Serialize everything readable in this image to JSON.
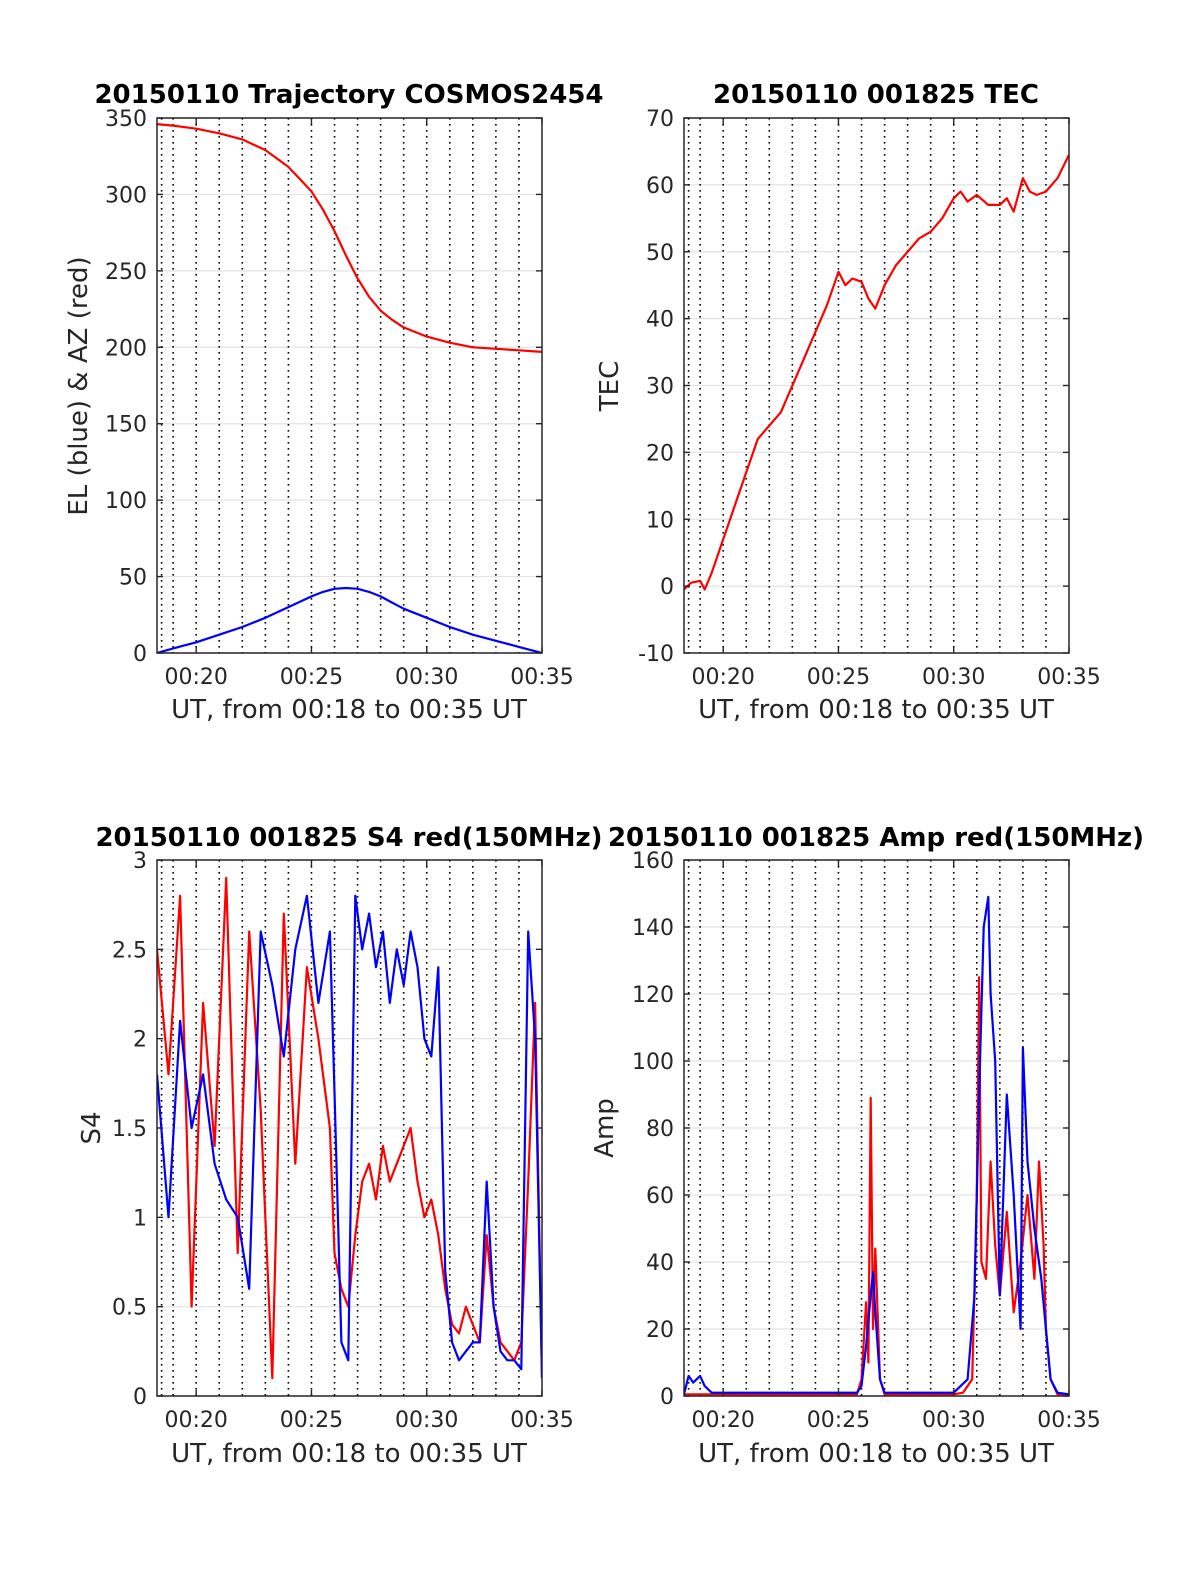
{
  "chart_data": [
    {
      "id": "traj",
      "type": "line",
      "title": "20150110 Trajectory COSMOS2454",
      "xlabel": "UT, from 00:18 to 00:35 UT",
      "ylabel": "EL (blue) & AZ (red)",
      "xlim": [
        18.3,
        35.0
      ],
      "ylim": [
        0,
        350
      ],
      "xticks": [
        20,
        25,
        30,
        35
      ],
      "xtick_labels": [
        "00:20",
        "00:25",
        "00:30",
        "00:35"
      ],
      "yticks": [
        0,
        50,
        100,
        150,
        200,
        250,
        300,
        350
      ],
      "ytick_labels": [
        "0",
        "50",
        "100",
        "150",
        "200",
        "250",
        "300",
        "350"
      ],
      "minor_xgrid": [
        18.5,
        19,
        20,
        21,
        22,
        23,
        24,
        25,
        26,
        27,
        28,
        29,
        30,
        31,
        32,
        33,
        34
      ],
      "grid": true,
      "colors": {
        "az": "#ff0000",
        "el": "#0000ff"
      },
      "series": [
        {
          "key": "az",
          "color": "#ff0000",
          "x": [
            18.3,
            19,
            20,
            21,
            22,
            23,
            24,
            25,
            25.5,
            26,
            26.5,
            27,
            27.5,
            28,
            28.5,
            29,
            30,
            31,
            32,
            33,
            34,
            35
          ],
          "y": [
            346,
            345,
            343,
            340,
            336,
            329,
            318,
            302,
            290,
            276,
            260,
            245,
            233,
            224,
            218,
            213,
            207,
            203,
            200,
            199,
            198,
            197
          ]
        },
        {
          "key": "el",
          "color": "#0000ff",
          "x": [
            18.3,
            19,
            20,
            21,
            22,
            23,
            24,
            25,
            25.5,
            26,
            26.5,
            27,
            27.5,
            28,
            28.5,
            29,
            30,
            31,
            32,
            33,
            34,
            35
          ],
          "y": [
            0,
            3,
            7,
            12,
            17,
            23,
            30,
            37,
            40,
            42,
            42.5,
            42,
            40,
            37,
            33,
            29,
            23,
            17,
            12,
            8,
            4,
            0
          ]
        }
      ]
    },
    {
      "id": "tec",
      "type": "line",
      "title": "20150110 001825 TEC",
      "xlabel": "UT, from 00:18 to 00:35 UT",
      "ylabel": "TEC",
      "xlim": [
        18.3,
        35.0
      ],
      "ylim": [
        -10,
        70
      ],
      "xticks": [
        20,
        25,
        30,
        35
      ],
      "xtick_labels": [
        "00:20",
        "00:25",
        "00:30",
        "00:35"
      ],
      "yticks": [
        -10,
        0,
        10,
        20,
        30,
        40,
        50,
        60,
        70
      ],
      "ytick_labels": [
        "-10",
        "0",
        "10",
        "20",
        "30",
        "40",
        "50",
        "60",
        "70"
      ],
      "minor_xgrid": [
        18.5,
        19,
        20,
        21,
        22,
        23,
        24,
        25,
        26,
        27,
        28,
        29,
        30,
        31,
        32,
        33,
        34
      ],
      "grid": true,
      "series": [
        {
          "key": "tec",
          "color": "#ff0000",
          "x": [
            18.3,
            18.6,
            19.0,
            19.2,
            19.5,
            20.0,
            20.5,
            21.0,
            21.5,
            22.0,
            22.5,
            23.0,
            23.5,
            24.0,
            24.5,
            25.0,
            25.3,
            25.6,
            26.0,
            26.3,
            26.6,
            27.0,
            27.5,
            28.0,
            28.5,
            29.0,
            29.5,
            30.0,
            30.3,
            30.6,
            31.0,
            31.5,
            32.0,
            32.3,
            32.6,
            33.0,
            33.3,
            33.6,
            34.0,
            34.5,
            35.0
          ],
          "y": [
            -0.5,
            0.5,
            0.8,
            -0.5,
            2,
            7,
            12,
            17,
            22,
            24,
            26,
            30,
            34,
            38,
            42,
            47,
            45,
            46,
            45.5,
            43,
            41.5,
            45,
            48,
            50,
            52,
            53,
            55,
            58,
            59,
            57.5,
            58.5,
            57,
            57,
            58,
            56,
            61,
            59,
            58.5,
            59,
            61,
            64.5
          ]
        }
      ]
    },
    {
      "id": "s4",
      "type": "line",
      "title": "20150110 001825 S4 red(150MHz)",
      "xlabel": "UT, from 00:18 to 00:35 UT",
      "ylabel": "S4",
      "xlim": [
        18.3,
        35.0
      ],
      "ylim": [
        0,
        3
      ],
      "xticks": [
        20,
        25,
        30,
        35
      ],
      "xtick_labels": [
        "00:20",
        "00:25",
        "00:30",
        "00:35"
      ],
      "yticks": [
        0,
        0.5,
        1,
        1.5,
        2,
        2.5,
        3
      ],
      "ytick_labels": [
        "0",
        "0.5",
        "1",
        "1.5",
        "2",
        "2.5",
        "3"
      ],
      "minor_xgrid": [
        18.5,
        19,
        20,
        21,
        22,
        23,
        24,
        25,
        26,
        27,
        28,
        29,
        30,
        31,
        32,
        33,
        34
      ],
      "grid": true,
      "series": [
        {
          "key": "s4_red",
          "color": "#ff0000",
          "x": [
            18.3,
            18.8,
            19.3,
            19.8,
            20.3,
            20.8,
            21.3,
            21.8,
            22.3,
            22.8,
            23.3,
            23.8,
            24.3,
            24.8,
            25.3,
            25.8,
            26.0,
            26.3,
            26.6,
            26.9,
            27.2,
            27.5,
            27.8,
            28.1,
            28.4,
            28.7,
            29.0,
            29.3,
            29.6,
            29.9,
            30.2,
            30.5,
            30.8,
            31.1,
            31.4,
            31.7,
            32.0,
            32.3,
            32.6,
            32.9,
            33.2,
            33.5,
            33.8,
            34.1,
            34.4,
            34.7,
            35.0
          ],
          "y": [
            2.5,
            1.8,
            2.8,
            0.5,
            2.2,
            1.4,
            2.9,
            0.8,
            2.6,
            1.6,
            0.1,
            2.7,
            1.3,
            2.4,
            2.0,
            1.5,
            0.8,
            0.6,
            0.5,
            0.9,
            1.2,
            1.3,
            1.1,
            1.4,
            1.2,
            1.3,
            1.4,
            1.5,
            1.2,
            1.0,
            1.1,
            0.9,
            0.6,
            0.4,
            0.35,
            0.5,
            0.4,
            0.3,
            0.9,
            0.5,
            0.3,
            0.25,
            0.2,
            0.3,
            1.2,
            2.2,
            0.1
          ]
        },
        {
          "key": "s4_blue",
          "color": "#0000ff",
          "x": [
            18.3,
            18.8,
            19.3,
            19.8,
            20.3,
            20.8,
            21.3,
            21.8,
            22.3,
            22.8,
            23.3,
            23.8,
            24.3,
            24.8,
            25.3,
            25.8,
            26.0,
            26.3,
            26.6,
            26.9,
            27.2,
            27.5,
            27.8,
            28.1,
            28.4,
            28.7,
            29.0,
            29.3,
            29.6,
            29.9,
            30.2,
            30.5,
            30.8,
            31.1,
            31.4,
            31.7,
            32.0,
            32.3,
            32.6,
            32.9,
            33.2,
            33.5,
            33.8,
            34.1,
            34.4,
            34.7,
            35.0
          ],
          "y": [
            1.8,
            1.0,
            2.1,
            1.5,
            1.8,
            1.3,
            1.1,
            1.0,
            0.6,
            2.6,
            2.3,
            1.9,
            2.5,
            2.8,
            2.2,
            2.6,
            1.7,
            0.3,
            0.2,
            2.8,
            2.5,
            2.7,
            2.4,
            2.6,
            2.2,
            2.5,
            2.3,
            2.6,
            2.4,
            2.0,
            1.9,
            2.4,
            0.7,
            0.3,
            0.2,
            0.25,
            0.3,
            0.3,
            1.2,
            0.5,
            0.25,
            0.2,
            0.2,
            0.15,
            2.6,
            2.0,
            0.1
          ]
        }
      ]
    },
    {
      "id": "amp",
      "type": "line",
      "title": "20150110 001825 Amp red(150MHz)",
      "xlabel": "UT, from 00:18 to 00:35 UT",
      "ylabel": "Amp",
      "xlim": [
        18.3,
        35.0
      ],
      "ylim": [
        0,
        160
      ],
      "xticks": [
        20,
        25,
        30,
        35
      ],
      "xtick_labels": [
        "00:20",
        "00:25",
        "00:30",
        "00:35"
      ],
      "yticks": [
        0,
        20,
        40,
        60,
        80,
        100,
        120,
        140,
        160
      ],
      "ytick_labels": [
        "0",
        "20",
        "40",
        "60",
        "80",
        "100",
        "120",
        "140",
        "160"
      ],
      "minor_xgrid": [
        18.5,
        19,
        20,
        21,
        22,
        23,
        24,
        25,
        26,
        27,
        28,
        29,
        30,
        31,
        32,
        33,
        34
      ],
      "grid": true,
      "series": [
        {
          "key": "amp_red",
          "color": "#ff0000",
          "x": [
            18.3,
            19.0,
            20.0,
            21.0,
            22.0,
            23.0,
            24.0,
            25.0,
            25.8,
            26.0,
            26.2,
            26.3,
            26.4,
            26.5,
            26.6,
            26.8,
            27.0,
            28.0,
            29.0,
            30.0,
            30.4,
            30.8,
            31.0,
            31.1,
            31.2,
            31.4,
            31.6,
            31.8,
            32.0,
            32.3,
            32.6,
            32.9,
            33.2,
            33.5,
            33.7,
            33.9,
            34.0,
            34.2,
            34.5,
            35.0
          ],
          "y": [
            0.5,
            0.5,
            0.5,
            0.5,
            0.5,
            0.5,
            0.5,
            0.5,
            0.5,
            5,
            28,
            10,
            89,
            20,
            44,
            5,
            0.5,
            0.5,
            0.5,
            0.5,
            1,
            5,
            60,
            125,
            40,
            35,
            70,
            45,
            30,
            55,
            25,
            40,
            60,
            35,
            70,
            45,
            20,
            5,
            0.5,
            0.5
          ]
        },
        {
          "key": "amp_blue",
          "color": "#0000ff",
          "x": [
            18.3,
            18.5,
            18.7,
            19.0,
            19.2,
            19.5,
            20.0,
            21.0,
            22.0,
            23.0,
            24.0,
            25.0,
            25.8,
            26.0,
            26.2,
            26.4,
            26.5,
            26.6,
            26.8,
            27.0,
            28.0,
            29.0,
            30.0,
            30.6,
            30.9,
            31.1,
            31.3,
            31.5,
            31.6,
            31.8,
            32.0,
            32.3,
            32.6,
            32.9,
            33.0,
            33.2,
            33.5,
            33.8,
            34.0,
            34.2,
            34.5,
            35.0
          ],
          "y": [
            0.5,
            6,
            4,
            6,
            3,
            1,
            1,
            1,
            1,
            1,
            1,
            1,
            1,
            3,
            15,
            30,
            37,
            25,
            5,
            1,
            1,
            1,
            1,
            5,
            30,
            90,
            140,
            149,
            120,
            100,
            30,
            90,
            60,
            20,
            104,
            70,
            50,
            35,
            20,
            5,
            1,
            0.5
          ]
        }
      ]
    }
  ]
}
